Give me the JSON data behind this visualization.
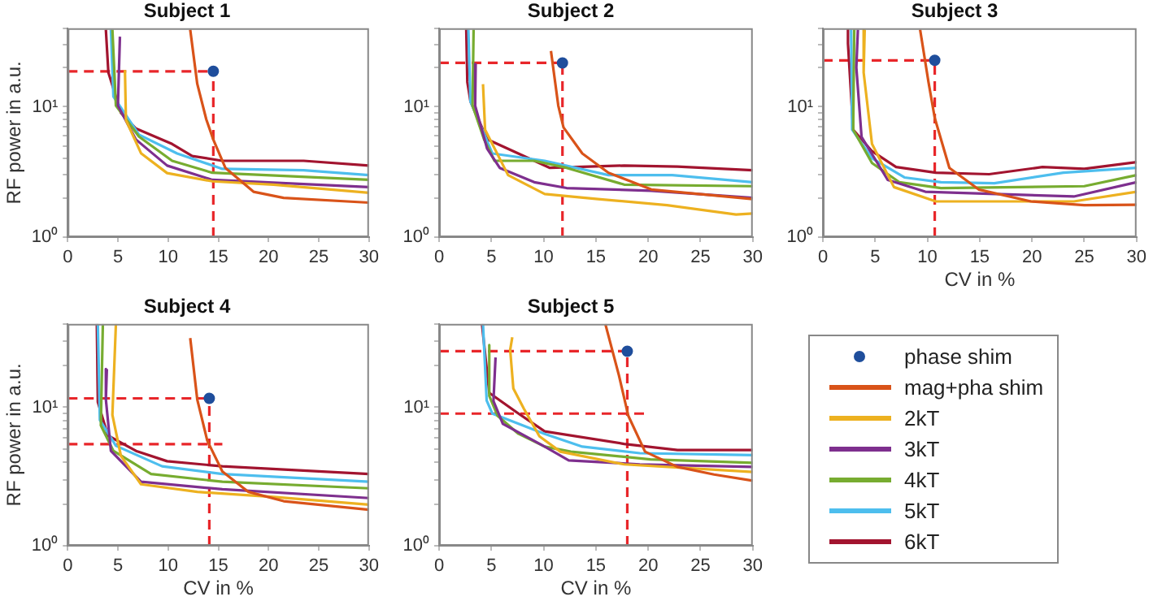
{
  "chart_data": [
    {
      "type": "line",
      "title": "Subject 1",
      "ylabel": "RF power in a.u.",
      "log": "y",
      "xlim": [
        0,
        30
      ],
      "ylim": [
        1,
        40
      ],
      "xticks": [
        0,
        5,
        10,
        15,
        20,
        25,
        30
      ],
      "yticks": [
        {
          "value": 1,
          "label": "10⁰"
        },
        {
          "value": 2,
          "label": null
        },
        {
          "value": 3,
          "label": null
        },
        {
          "value": 4,
          "label": null
        },
        {
          "value": 5,
          "label": null
        },
        {
          "value": 6,
          "label": null
        },
        {
          "value": 7,
          "label": null
        },
        {
          "value": 8,
          "label": null
        },
        {
          "value": 9,
          "label": null
        },
        {
          "value": 10,
          "label": "10¹"
        },
        {
          "value": 20,
          "label": null
        },
        {
          "value": 30,
          "label": null
        },
        {
          "value": 40,
          "label": null
        }
      ],
      "grid": false,
      "legend": false,
      "series": [
        {
          "type": "scatter",
          "marker": "circle",
          "color": "#1f4e9c",
          "x": [
            14.5
          ],
          "values": [
            18.7
          ]
        },
        {
          "type": "line",
          "color": "#d95319",
          "x": [
            12.2,
            12.9,
            13.8,
            14.5,
            15.7,
            18.5,
            21.5,
            30
          ],
          "values": [
            39,
            15,
            8,
            5.6,
            3.4,
            2.23,
            2.0,
            1.84
          ]
        },
        {
          "type": "line",
          "color": "#edb120",
          "x": [
            5.7,
            5.8,
            7.3,
            9.9,
            14.4,
            20.5,
            30
          ],
          "values": [
            19.1,
            7.9,
            4.4,
            3.1,
            2.68,
            2.53,
            2.19
          ]
        },
        {
          "type": "line",
          "color": "#7e2f8e",
          "x": [
            5.2,
            5.0,
            6.8,
            9.9,
            14.4,
            30
          ],
          "values": [
            34.5,
            10.2,
            5.6,
            3.54,
            2.75,
            2.42
          ]
        },
        {
          "type": "line",
          "color": "#77ac30",
          "x": [
            4.45,
            4.8,
            7.1,
            10.4,
            14.4,
            30
          ],
          "values": [
            39,
            10.2,
            5.9,
            3.85,
            3.12,
            2.75
          ]
        },
        {
          "type": "line",
          "color": "#4dbeee",
          "x": [
            4.3,
            4.55,
            7.1,
            10.9,
            15.4,
            23.5,
            30
          ],
          "values": [
            39,
            12,
            6.1,
            4.38,
            3.34,
            3.26,
            2.99
          ]
        },
        {
          "type": "line",
          "color": "#a2142f",
          "x": [
            3.8,
            4.05,
            5.3,
            6.8,
            10.4,
            12.4,
            15.4,
            23.5,
            30
          ],
          "values": [
            39,
            18.3,
            8.96,
            6.8,
            5.18,
            4.19,
            3.85,
            3.85,
            3.54
          ]
        },
        {
          "type": "line",
          "line_style": "dashed",
          "color": "#e8262a",
          "x": [
            0,
            14.5
          ],
          "values": [
            18.7,
            18.7
          ]
        },
        {
          "type": "line",
          "line_style": "dashed",
          "color": "#e8262a",
          "x": [
            14.5,
            14.5
          ],
          "values": [
            1,
            18.7
          ]
        }
      ]
    },
    {
      "type": "line",
      "title": "Subject 2",
      "log": "y",
      "xlim": [
        0,
        30
      ],
      "ylim": [
        1,
        40
      ],
      "xticks": [
        0,
        5,
        10,
        15,
        20,
        25,
        30
      ],
      "yticks": [
        {
          "value": 1,
          "label": "10⁰"
        },
        {
          "value": 2,
          "label": null
        },
        {
          "value": 3,
          "label": null
        },
        {
          "value": 4,
          "label": null
        },
        {
          "value": 5,
          "label": null
        },
        {
          "value": 6,
          "label": null
        },
        {
          "value": 7,
          "label": null
        },
        {
          "value": 8,
          "label": null
        },
        {
          "value": 9,
          "label": null
        },
        {
          "value": 10,
          "label": "10¹"
        },
        {
          "value": 20,
          "label": null
        },
        {
          "value": 30,
          "label": null
        },
        {
          "value": 40,
          "label": null
        }
      ],
      "grid": false,
      "legend": false,
      "series": [
        {
          "type": "scatter",
          "marker": "circle",
          "color": "#1f4e9c",
          "x": [
            11.8
          ],
          "values": [
            21.7
          ]
        },
        {
          "type": "line",
          "color": "#d95319",
          "x": [
            10.7,
            11.4,
            11.9,
            13.7,
            16.2,
            20.3,
            30
          ],
          "values": [
            26.8,
            10.2,
            6.95,
            4.38,
            3.12,
            2.32,
            1.96
          ]
        },
        {
          "type": "line",
          "color": "#edb120",
          "x": [
            4.2,
            4.4,
            6.6,
            10.1,
            15.2,
            21.8,
            28.4,
            30
          ],
          "values": [
            14.9,
            6.67,
            2.99,
            2.14,
            1.96,
            1.76,
            1.49,
            1.52
          ]
        },
        {
          "type": "line",
          "color": "#7e2f8e",
          "x": [
            3.5,
            3.45,
            4.6,
            5.8,
            9.1,
            12.2,
            20.3,
            30
          ],
          "values": [
            21.3,
            10.2,
            4.76,
            3.4,
            2.64,
            2.38,
            2.27,
            2.0
          ]
        },
        {
          "type": "line",
          "color": "#77ac30",
          "x": [
            3.3,
            3.2,
            4.3,
            5.3,
            9.1,
            12.2,
            17.7,
            30
          ],
          "values": [
            39,
            10.2,
            5.63,
            3.85,
            3.85,
            3.4,
            2.53,
            2.46
          ]
        },
        {
          "type": "line",
          "color": "#4dbeee",
          "x": [
            2.8,
            3.0,
            5.1,
            10.1,
            16.2,
            22.3,
            30
          ],
          "values": [
            39,
            11,
            4.38,
            3.85,
            2.99,
            2.99,
            2.64
          ]
        },
        {
          "type": "line",
          "color": "#a2142f",
          "x": [
            2.6,
            2.7,
            3.0,
            4.6,
            10.6,
            17.7,
            22.8,
            30
          ],
          "values": [
            39,
            15.5,
            11,
            5.63,
            3.4,
            3.54,
            3.48,
            3.26
          ]
        },
        {
          "type": "line",
          "line_style": "dashed",
          "color": "#e8262a",
          "x": [
            0,
            11.8
          ],
          "values": [
            21.7,
            21.7
          ]
        },
        {
          "type": "line",
          "line_style": "dashed",
          "color": "#e8262a",
          "x": [
            11.8,
            11.8
          ],
          "values": [
            1,
            21.7
          ]
        }
      ]
    },
    {
      "type": "line",
      "title": "Subject 3",
      "xlabel": "CV in %",
      "log": "y",
      "xlim": [
        0,
        30
      ],
      "ylim": [
        1,
        40
      ],
      "xticks": [
        0,
        5,
        10,
        15,
        20,
        25,
        30
      ],
      "yticks": [
        {
          "value": 1,
          "label": "10⁰"
        },
        {
          "value": 2,
          "label": null
        },
        {
          "value": 3,
          "label": null
        },
        {
          "value": 4,
          "label": null
        },
        {
          "value": 5,
          "label": null
        },
        {
          "value": 6,
          "label": null
        },
        {
          "value": 7,
          "label": null
        },
        {
          "value": 8,
          "label": null
        },
        {
          "value": 9,
          "label": null
        },
        {
          "value": 10,
          "label": "10¹"
        },
        {
          "value": 20,
          "label": null
        },
        {
          "value": 30,
          "label": null
        },
        {
          "value": 40,
          "label": null
        }
      ],
      "grid": false,
      "legend": false,
      "series": [
        {
          "type": "scatter",
          "marker": "circle",
          "color": "#1f4e9c",
          "x": [
            10.7
          ],
          "values": [
            22.7
          ]
        },
        {
          "type": "line",
          "color": "#d95319",
          "x": [
            9.3,
            10.1,
            10.7,
            12.1,
            14.9,
            19.9,
            25,
            30
          ],
          "values": [
            39,
            15.5,
            8.2,
            3.4,
            2.32,
            1.88,
            1.76,
            1.77
          ]
        },
        {
          "type": "line",
          "color": "#edb120",
          "x": [
            4.0,
            3.9,
            4.7,
            6.8,
            10.8,
            24,
            30
          ],
          "values": [
            39,
            18.3,
            5.18,
            2.42,
            1.88,
            1.88,
            2.23
          ]
        },
        {
          "type": "line",
          "color": "#7e2f8e",
          "x": [
            3.35,
            3.2,
            3.7,
            6.2,
            9.8,
            24,
            30
          ],
          "values": [
            39,
            20,
            5.87,
            2.75,
            2.23,
            2.05,
            2.64
          ]
        },
        {
          "type": "line",
          "color": "#77ac30",
          "x": [
            3.0,
            2.9,
            4.7,
            7.3,
            11.3,
            25,
            30
          ],
          "values": [
            39,
            6.67,
            3.7,
            2.64,
            2.38,
            2.46,
            2.99
          ]
        },
        {
          "type": "line",
          "color": "#4dbeee",
          "x": [
            2.7,
            2.8,
            4.7,
            7.8,
            11.3,
            16.4,
            23,
            30
          ],
          "values": [
            39,
            6.67,
            4.02,
            2.87,
            2.64,
            2.59,
            3.12,
            3.4
          ]
        },
        {
          "type": "line",
          "color": "#a2142f",
          "x": [
            2.4,
            2.4,
            2.9,
            4.7,
            7.0,
            10.8,
            15.9,
            21,
            25,
            30
          ],
          "values": [
            39,
            30.5,
            6.67,
            4.56,
            3.45,
            3.12,
            3.04,
            3.45,
            3.34,
            3.76
          ]
        },
        {
          "type": "line",
          "line_style": "dashed",
          "color": "#e8262a",
          "x": [
            0,
            10.7
          ],
          "values": [
            22.7,
            22.7
          ]
        },
        {
          "type": "line",
          "line_style": "dashed",
          "color": "#e8262a",
          "x": [
            10.7,
            10.7
          ],
          "values": [
            1,
            22.7
          ]
        }
      ]
    },
    {
      "type": "line",
      "title": "Subject 4",
      "xlabel": "CV in %",
      "ylabel": "RF power in a.u.",
      "log": "y",
      "xlim": [
        0,
        30
      ],
      "ylim": [
        1,
        40
      ],
      "xticks": [
        0,
        5,
        10,
        15,
        20,
        25,
        30
      ],
      "yticks": [
        {
          "value": 1,
          "label": "10⁰"
        },
        {
          "value": 2,
          "label": null
        },
        {
          "value": 3,
          "label": null
        },
        {
          "value": 4,
          "label": null
        },
        {
          "value": 5,
          "label": null
        },
        {
          "value": 6,
          "label": null
        },
        {
          "value": 7,
          "label": null
        },
        {
          "value": 8,
          "label": null
        },
        {
          "value": 9,
          "label": null
        },
        {
          "value": 10,
          "label": "10¹"
        },
        {
          "value": 20,
          "label": null
        },
        {
          "value": 30,
          "label": null
        },
        {
          "value": 40,
          "label": null
        }
      ],
      "grid": false,
      "legend": false,
      "series": [
        {
          "type": "scatter",
          "marker": "circle",
          "color": "#1f4e9c",
          "x": [
            14.1
          ],
          "values": [
            11.6
          ]
        },
        {
          "type": "line",
          "color": "#d95319",
          "x": [
            12.2,
            12.9,
            13.9,
            15.4,
            18.0,
            21.5,
            30
          ],
          "values": [
            31.6,
            11.4,
            5.74,
            3.44,
            2.45,
            2.1,
            1.82
          ]
        },
        {
          "type": "line",
          "color": "#edb120",
          "x": [
            4.8,
            4.45,
            5.3,
            7.3,
            12.9,
            20.5,
            30
          ],
          "values": [
            40,
            8.8,
            4.45,
            2.78,
            2.45,
            2.25,
            1.98
          ]
        },
        {
          "type": "line",
          "color": "#7e2f8e",
          "x": [
            3.9,
            3.8,
            4.3,
            7.3,
            15.4,
            30
          ],
          "values": [
            18.9,
            11.4,
            4.84,
            2.9,
            2.56,
            2.21
          ]
        },
        {
          "type": "line",
          "color": "#77ac30",
          "x": [
            3.5,
            3.3,
            4.55,
            8.3,
            15.4,
            30
          ],
          "values": [
            40,
            7.4,
            4.84,
            3.3,
            2.9,
            2.6
          ]
        },
        {
          "type": "line",
          "color": "#4dbeee",
          "x": [
            3.0,
            3.2,
            4.8,
            9.4,
            15.4,
            30
          ],
          "values": [
            40,
            8.1,
            5.27,
            3.75,
            3.3,
            2.9
          ]
        },
        {
          "type": "line",
          "color": "#a2142f",
          "x": [
            2.9,
            3.0,
            4.0,
            6.8,
            9.9,
            15.4,
            30
          ],
          "values": [
            40,
            10.9,
            6.25,
            4.84,
            4.08,
            3.75,
            3.3
          ]
        },
        {
          "type": "line",
          "line_style": "dashed",
          "color": "#e8262a",
          "x": [
            0,
            14.1
          ],
          "values": [
            11.6,
            11.6
          ]
        },
        {
          "type": "line",
          "line_style": "dashed",
          "color": "#e8262a",
          "x": [
            0,
            15.4
          ],
          "values": [
            5.41,
            5.41
          ]
        },
        {
          "type": "line",
          "line_style": "dashed",
          "color": "#e8262a",
          "x": [
            14.1,
            14.1
          ],
          "values": [
            1,
            11.6
          ]
        }
      ]
    },
    {
      "type": "line",
      "title": "Subject 5",
      "xlabel": "CV in %",
      "log": "y",
      "xlim": [
        0,
        30
      ],
      "ylim": [
        1,
        40
      ],
      "xticks": [
        0,
        5,
        10,
        15,
        20,
        25,
        30
      ],
      "yticks": [
        {
          "value": 1,
          "label": "10⁰"
        },
        {
          "value": 2,
          "label": null
        },
        {
          "value": 3,
          "label": null
        },
        {
          "value": 4,
          "label": null
        },
        {
          "value": 5,
          "label": null
        },
        {
          "value": 6,
          "label": null
        },
        {
          "value": 7,
          "label": null
        },
        {
          "value": 8,
          "label": null
        },
        {
          "value": 9,
          "label": null
        },
        {
          "value": 10,
          "label": "10¹"
        },
        {
          "value": 20,
          "label": null
        },
        {
          "value": 30,
          "label": null
        },
        {
          "value": 40,
          "label": null
        }
      ],
      "grid": false,
      "legend": "right",
      "series": [
        {
          "name": "phase shim",
          "type": "scatter",
          "marker": "circle",
          "color": "#1f4e9c",
          "x": [
            18.0
          ],
          "values": [
            25.4
          ]
        },
        {
          "name": "mag+pha shim",
          "type": "line",
          "color": "#d95319",
          "x": [
            15.9,
            17.2,
            18.1,
            19.7,
            22.8,
            26.3,
            30
          ],
          "values": [
            40,
            17.0,
            8.67,
            4.78,
            3.71,
            3.27,
            2.95
          ]
        },
        {
          "name": "2kT",
          "type": "line",
          "color": "#edb120",
          "x": [
            7.0,
            6.8,
            7.1,
            8.1,
            9.6,
            11.6,
            17.7,
            30
          ],
          "values": [
            32,
            26,
            13.7,
            9.8,
            6.17,
            4.78,
            3.87,
            3.41
          ]
        },
        {
          "name": "3kT",
          "type": "line",
          "color": "#7e2f8e",
          "x": [
            5.4,
            5.2,
            6.1,
            10.1,
            12.4,
            19.2,
            30
          ],
          "values": [
            22.9,
            11.1,
            7.6,
            5.2,
            4.14,
            3.87,
            3.71
          ]
        },
        {
          "name": "4kT",
          "type": "line",
          "color": "#77ac30",
          "x": [
            4.8,
            4.8,
            5.6,
            7.6,
            10.1,
            12.6,
            20.2,
            30
          ],
          "values": [
            28.1,
            12.1,
            8.67,
            6.43,
            5.2,
            4.78,
            4.21,
            3.97
          ]
        },
        {
          "name": "5kT",
          "type": "line",
          "color": "#4dbeee",
          "x": [
            4.2,
            4.55,
            5.1,
            10.1,
            13.7,
            19.2,
            30
          ],
          "values": [
            40,
            11.2,
            9.0,
            6.43,
            5.2,
            4.66,
            4.52
          ]
        },
        {
          "name": "6kT",
          "type": "line",
          "color": "#a2142f",
          "x": [
            4.1,
            4.8,
            7.6,
            10.1,
            17.7,
            22.8,
            30
          ],
          "values": [
            40,
            12.7,
            9.0,
            6.7,
            5.44,
            4.91,
            4.91
          ]
        },
        {
          "type": "line",
          "line_style": "dashed",
          "color": "#e8262a",
          "x": [
            0,
            18.0
          ],
          "values": [
            25.4,
            25.4
          ]
        },
        {
          "type": "line",
          "line_style": "dashed",
          "color": "#e8262a",
          "x": [
            0,
            19.7
          ],
          "values": [
            9.0,
            9.0
          ]
        },
        {
          "type": "line",
          "line_style": "dashed",
          "color": "#e8262a",
          "x": [
            18.0,
            18.0
          ],
          "values": [
            1,
            25.4
          ]
        }
      ]
    }
  ]
}
